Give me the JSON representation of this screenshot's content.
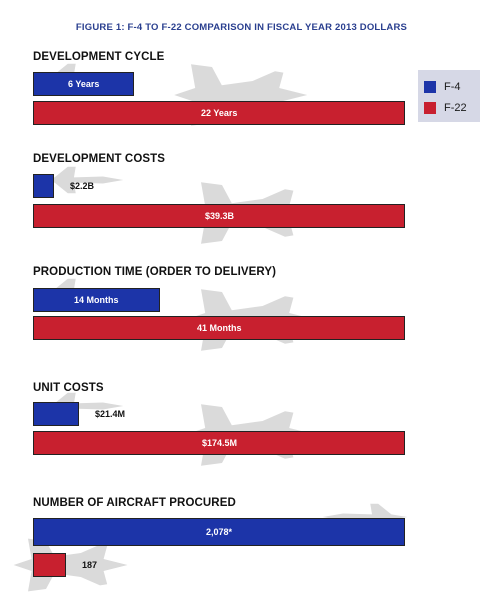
{
  "title": "FIGURE 1: F-4 TO F-22 COMPARISON IN FISCAL YEAR 2013 DOLLARS",
  "legend": [
    {
      "name": "F-4",
      "color": "#1c34a8"
    },
    {
      "name": "F-22",
      "color": "#c8202f"
    }
  ],
  "colors": {
    "f4": "#1c34a8",
    "f22": "#c8202f",
    "aircraft_silhouette": "#dadada"
  },
  "icons": [
    "f4-aircraft-icon",
    "f22-aircraft-icon"
  ],
  "chart_data": [
    {
      "type": "bar",
      "title": "DEVELOPMENT CYCLE",
      "orientation": "horizontal",
      "series": [
        {
          "name": "F-4",
          "value": 6,
          "label": "6 Years"
        },
        {
          "name": "F-22",
          "value": 22,
          "label": "22 Years"
        }
      ]
    },
    {
      "type": "bar",
      "title": "DEVELOPMENT COSTS",
      "orientation": "horizontal",
      "series": [
        {
          "name": "F-4",
          "value": 2.2,
          "label": "$2.2B"
        },
        {
          "name": "F-22",
          "value": 39.3,
          "label": "$39.3B"
        }
      ]
    },
    {
      "type": "bar",
      "title": "PRODUCTION TIME (ORDER TO DELIVERY)",
      "orientation": "horizontal",
      "series": [
        {
          "name": "F-4",
          "value": 14,
          "label": "14 Months"
        },
        {
          "name": "F-22",
          "value": 41,
          "label": "41 Months"
        }
      ]
    },
    {
      "type": "bar",
      "title": "UNIT COSTS",
      "orientation": "horizontal",
      "series": [
        {
          "name": "F-4",
          "value": 21.4,
          "label": "$21.4M"
        },
        {
          "name": "F-22",
          "value": 174.5,
          "label": "$174.5M"
        }
      ]
    },
    {
      "type": "bar",
      "title": "NUMBER OF AIRCRAFT PROCURED",
      "orientation": "horizontal",
      "series": [
        {
          "name": "F-4",
          "value": 2078,
          "label": "2,078*"
        },
        {
          "name": "F-22",
          "value": 187,
          "label": "187"
        }
      ]
    }
  ]
}
